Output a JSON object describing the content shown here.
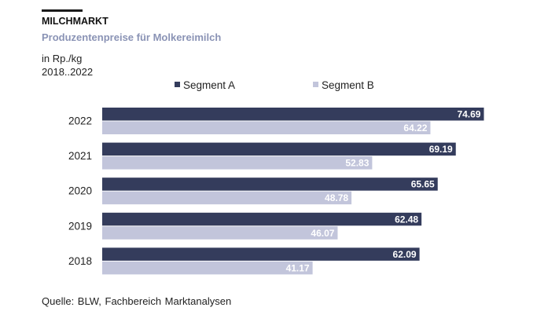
{
  "header": {
    "title": "MILCHMARKT",
    "subtitle": "Produzentenpreise für Molkereimilch",
    "unit": "in Rp./kg",
    "period": "2018..2022"
  },
  "footer": {
    "source": "Quelle: BLW, Fachbereich Marktanalysen"
  },
  "colors": {
    "segment_a": "#343c5c",
    "segment_b": "#c2c5db"
  },
  "chart_data": {
    "type": "bar",
    "orientation": "horizontal",
    "categories": [
      "2022",
      "2021",
      "2020",
      "2019",
      "2018"
    ],
    "series": [
      {
        "name": "Segment A",
        "values": [
          74.69,
          69.19,
          65.65,
          62.48,
          62.09
        ]
      },
      {
        "name": "Segment B",
        "values": [
          64.22,
          52.83,
          48.78,
          46.07,
          41.17
        ]
      }
    ],
    "xlim": [
      0,
      80
    ],
    "grid": false,
    "legend": "top",
    "data_labels": true
  }
}
